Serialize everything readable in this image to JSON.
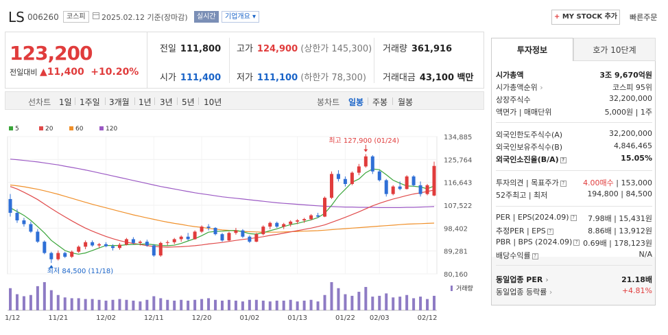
{
  "header": {
    "name": "LS",
    "code": "006260",
    "market_tag": "코스피",
    "date_text": "2025.02.12 기준(장마감)",
    "realtime_label": "실시간",
    "company_info_label": "기업개요",
    "mystock_plus": "+",
    "mystock_label": "MY STOCK 추가",
    "quick_order_label": "빠른주문"
  },
  "price": {
    "current": "123,200",
    "change_label": "전일대비",
    "change_arrow": "▲",
    "change_amount": "11,400",
    "change_pct": "+10.20%"
  },
  "summary": {
    "prev_label": "전일",
    "prev_value": "111,800",
    "high_label": "고가",
    "high_value": "124,900",
    "upper_limit": "(상한가 145,300)",
    "volume_label": "거래량",
    "volume_value": "361,916",
    "open_label": "시가",
    "open_value": "111,400",
    "low_label": "저가",
    "low_value": "111,100",
    "lower_limit": "(하한가 78,300)",
    "amount_label": "거래대금",
    "amount_value": "43,100 백만"
  },
  "period_bar": {
    "line_chart_label": "선차트",
    "periods": [
      "1일",
      "1주일",
      "3개월",
      "1년",
      "3년",
      "5년",
      "10년"
    ],
    "candle_label": "봉차트",
    "candle_periods": [
      "일봉",
      "주봉",
      "월봉"
    ],
    "selected_candle": "일봉"
  },
  "chart_data": {
    "type": "candlestick",
    "legend": [
      {
        "name": "5",
        "color": "#3aa53a"
      },
      {
        "name": "20",
        "color": "#e04a4a"
      },
      {
        "name": "60",
        "color": "#f0902a"
      },
      {
        "name": "120",
        "color": "#9b59c4"
      }
    ],
    "y_ticks": [
      "134,885",
      "125,764",
      "116,643",
      "107,522",
      "98,402",
      "89,281",
      "80,160"
    ],
    "ylim": [
      80160,
      134885
    ],
    "x_ticks": [
      "11/12",
      "11/21",
      "12/02",
      "12/11",
      "12/20",
      "01/02",
      "01/13",
      "01/22",
      "02/03",
      "02/12"
    ],
    "high_annotation": "최고 127,900 (01/24)",
    "low_annotation": "최저 84,500 (11/18)",
    "volume_label": "거래량",
    "colors": {
      "up": "#e03c3c",
      "down": "#2f6fd6",
      "volume": "#8e7bc4"
    },
    "candles": [
      [
        110000,
        112000,
        103000,
        104500
      ],
      [
        104500,
        106000,
        100500,
        101500
      ],
      [
        101500,
        102500,
        99000,
        100000
      ],
      [
        100000,
        101000,
        96500,
        97000
      ],
      [
        97000,
        98000,
        92500,
        93000
      ],
      [
        93000,
        93500,
        88000,
        88500
      ],
      [
        88500,
        89000,
        84500,
        86000
      ],
      [
        86000,
        89500,
        85500,
        88500
      ],
      [
        88500,
        89000,
        86500,
        87000
      ],
      [
        87000,
        89500,
        86500,
        89000
      ],
      [
        89000,
        91500,
        88500,
        91000
      ],
      [
        91000,
        93500,
        90000,
        92800
      ],
      [
        92800,
        93500,
        91000,
        91500
      ],
      [
        91500,
        92500,
        90500,
        92000
      ],
      [
        92000,
        92800,
        90800,
        91200
      ],
      [
        91200,
        92000,
        89500,
        90500
      ],
      [
        90500,
        92500,
        89800,
        91800
      ],
      [
        91800,
        94500,
        91500,
        94000
      ],
      [
        94000,
        94800,
        92000,
        92500
      ],
      [
        92500,
        93500,
        91500,
        93000
      ],
      [
        93000,
        93800,
        91000,
        91500
      ],
      [
        91500,
        92000,
        87000,
        87500
      ],
      [
        87500,
        93000,
        87000,
        92500
      ],
      [
        92500,
        93500,
        91500,
        92800
      ],
      [
        92800,
        94500,
        92000,
        94000
      ],
      [
        94000,
        95500,
        93000,
        95000
      ],
      [
        95000,
        96500,
        93500,
        94000
      ],
      [
        94000,
        97500,
        93800,
        97000
      ],
      [
        97000,
        99500,
        96500,
        99000
      ],
      [
        99000,
        100000,
        97500,
        98500
      ],
      [
        98500,
        98800,
        95500,
        96000
      ],
      [
        96000,
        96500,
        93000,
        93500
      ],
      [
        93500,
        97000,
        93200,
        96500
      ],
      [
        96500,
        98500,
        95800,
        97500
      ],
      [
        97500,
        98000,
        94500,
        95000
      ],
      [
        95000,
        95500,
        92500,
        93000
      ],
      [
        93000,
        96500,
        92800,
        96000
      ],
      [
        96000,
        99500,
        95500,
        99000
      ],
      [
        99000,
        101000,
        98000,
        100500
      ],
      [
        100500,
        101000,
        98500,
        99000
      ],
      [
        99000,
        100500,
        98000,
        100000
      ],
      [
        100000,
        101500,
        99000,
        101000
      ],
      [
        101000,
        102000,
        100000,
        101500
      ],
      [
        101500,
        102500,
        100500,
        102000
      ],
      [
        102000,
        104000,
        101500,
        103500
      ],
      [
        103500,
        104500,
        102500,
        103000
      ],
      [
        103000,
        111000,
        102800,
        110500
      ],
      [
        110500,
        121000,
        110000,
        120000
      ],
      [
        120000,
        121500,
        117000,
        118000
      ],
      [
        118000,
        119000,
        115000,
        116000
      ],
      [
        116000,
        121000,
        115500,
        120500
      ],
      [
        120500,
        124000,
        119500,
        123000
      ],
      [
        123000,
        127900,
        122500,
        127000
      ],
      [
        127000,
        127500,
        120000,
        121000
      ],
      [
        121000,
        121500,
        117000,
        117500
      ],
      [
        117500,
        118000,
        111000,
        112000
      ],
      [
        112000,
        115500,
        111500,
        115000
      ],
      [
        115000,
        117000,
        113500,
        114000
      ],
      [
        114000,
        119500,
        113800,
        119000
      ],
      [
        119000,
        119500,
        115000,
        115500
      ],
      [
        115500,
        117000,
        111000,
        112000
      ],
      [
        112000,
        116000,
        111500,
        115500
      ],
      [
        111400,
        124900,
        111100,
        123200
      ]
    ],
    "volumes": [
      55,
      40,
      35,
      38,
      60,
      70,
      50,
      38,
      32,
      30,
      30,
      28,
      28,
      26,
      24,
      26,
      28,
      26,
      24,
      22,
      26,
      35,
      30,
      26,
      24,
      26,
      24,
      26,
      28,
      30,
      26,
      24,
      26,
      24,
      22,
      26,
      26,
      24,
      22,
      24,
      24,
      26,
      22,
      24,
      26,
      22,
      38,
      70,
      55,
      40,
      36,
      46,
      58,
      34,
      36,
      42,
      32,
      34,
      38,
      30,
      34,
      28,
      36
    ],
    "ma5": [
      106500,
      105000,
      103500,
      101500,
      99000,
      96500,
      93500,
      91500,
      89500,
      88500,
      88000,
      88500,
      89500,
      90500,
      91500,
      91500,
      91500,
      91800,
      91900,
      92000,
      92100,
      91800,
      91500,
      91400,
      91600,
      92300,
      93300,
      94200,
      95400,
      96800,
      97100,
      97200,
      97400,
      97500,
      97000,
      96200,
      96000,
      96600,
      97400,
      98100,
      99000,
      99800,
      100300,
      101000,
      101700,
      102600,
      104300,
      107500,
      111200,
      113900,
      116700,
      118000,
      120500,
      122000,
      121700,
      119700,
      117500,
      116300,
      115200,
      115100,
      114800,
      114100,
      115200
    ],
    "ma20": [
      115000,
      114000,
      112700,
      111300,
      109800,
      108000,
      106200,
      104500,
      102900,
      101300,
      99800,
      98400,
      97200,
      96100,
      95100,
      94200,
      93400,
      92800,
      92300,
      91900,
      91400,
      91100,
      90900,
      90800,
      90900,
      91000,
      91200,
      91400,
      91700,
      92100,
      92400,
      92700,
      93100,
      93500,
      93900,
      94200,
      94600,
      95000,
      95500,
      95900,
      96400,
      96900,
      97400,
      97900,
      98400,
      99000,
      99700,
      100700,
      101700,
      102700,
      103800,
      104900,
      106100,
      107300,
      108300,
      109200,
      110000,
      110700,
      111400,
      112000,
      112500,
      113000,
      113600
    ],
    "ma60": [
      115600,
      115300,
      114900,
      114400,
      113900,
      113300,
      112600,
      111900,
      111100,
      110300,
      109500,
      108700,
      107900,
      107200,
      106500,
      105800,
      105100,
      104400,
      103700,
      103100,
      102500,
      101900,
      101300,
      100800,
      100300,
      99900,
      99400,
      99000,
      98700,
      98300,
      98000,
      97700,
      97500,
      97300,
      97100,
      97000,
      96900,
      96800,
      96800,
      96800,
      96900,
      97000,
      97100,
      97200,
      97300,
      97400,
      97600,
      97800,
      98000,
      98200,
      98400,
      98600,
      98800,
      99000,
      99200,
      99400,
      99600,
      99800,
      100000,
      100100,
      100200,
      100300,
      100400
    ],
    "ma120": [
      125900,
      125700,
      125400,
      125100,
      124800,
      124400,
      124000,
      123600,
      123100,
      122600,
      122100,
      121600,
      121000,
      120400,
      119800,
      119200,
      118600,
      118000,
      117400,
      116800,
      116200,
      115600,
      115000,
      114500,
      114000,
      113500,
      113000,
      112500,
      112100,
      111700,
      111300,
      110900,
      110600,
      110300,
      110000,
      109700,
      109400,
      109100,
      108800,
      108500,
      108300,
      108100,
      107900,
      107700,
      107500,
      107300,
      107100,
      107000,
      106900,
      106800,
      106800,
      106700,
      106700,
      106700,
      106600,
      106600,
      106600,
      106600,
      106700,
      106700,
      106800,
      106900,
      107000
    ]
  },
  "invest_info": {
    "tab_active": "투자정보",
    "tab_inactive": "호가 10단계",
    "rows": [
      {
        "k": "시가총액",
        "v": "3조 9,670억원",
        "bold": true
      },
      {
        "k": "시가총액순위",
        "v": "코스피 95위"
      },
      {
        "k": "상장주식수",
        "v": "32,200,000"
      },
      {
        "k": "액면가 | 매매단위",
        "v": "5,000원 | 1주"
      },
      {
        "k": "외국인한도주식수(A)",
        "v": "32,200,000"
      },
      {
        "k": "외국인보유주식수(B)",
        "v": "4,846,465"
      },
      {
        "k": "외국인소진율(B/A)",
        "v": "15.05%",
        "bold": true
      },
      {
        "k": "투자의견 | 목표주가",
        "v_red": "4.00매수",
        "v": "153,000"
      },
      {
        "k": "52주최고 | 최저",
        "v": "194,800 | 84,500"
      },
      {
        "k": "PER | EPS(2024.09)",
        "v": "7.98배 | 15,431원"
      },
      {
        "k": "추정PER | EPS",
        "v": "8.86배 | 13,912원"
      },
      {
        "k": "PBR | BPS (2024.09)",
        "v": "0.69배 | 178,123원"
      },
      {
        "k": "배당수익률",
        "v": "N/A"
      },
      {
        "k": "동일업종 PER",
        "v": "21.18배",
        "bold": true
      },
      {
        "k": "동일업종 등락률",
        "v": "+4.81%",
        "red": true
      }
    ]
  }
}
